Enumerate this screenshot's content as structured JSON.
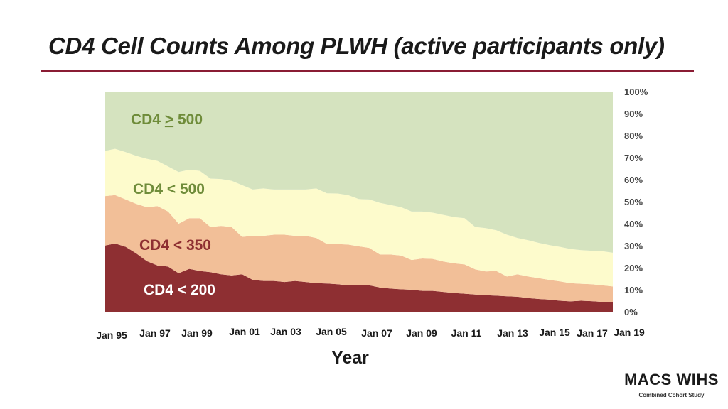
{
  "title": "CD4 Cell Counts Among PLWH (active participants only)",
  "logo": {
    "text": "MACS WIHS",
    "subtitle": "Combined Cohort Study"
  },
  "colors": {
    "band_lt200": "#8e2f32",
    "band_lt350": "#f2bf98",
    "band_lt500": "#fdfbcc",
    "band_ge500": "#d5e3bf",
    "label_dark_green": "#6f8c3a",
    "label_white": "#ffffff",
    "title_rule": "#8a1c34"
  },
  "chart_data": {
    "type": "area",
    "stacked": true,
    "xlabel": "Year",
    "ylabel": "",
    "ylim": [
      0,
      100
    ],
    "y_ticks": [
      "0%",
      "10%",
      "20%",
      "30%",
      "40%",
      "50%",
      "60%",
      "70%",
      "80%",
      "90%",
      "100%"
    ],
    "x_ticks": [
      "Jan 95",
      "Jan 97",
      "Jan 99",
      "Jan 01",
      "Jan 03",
      "Jan 05",
      "Jan 07",
      "Jan 09",
      "Jan 11",
      "Jan 13",
      "Jan 15",
      "Jan 17",
      "Jan 19"
    ],
    "x": [
      1995.0,
      1995.5,
      1996.0,
      1996.5,
      1997.0,
      1997.5,
      1998.0,
      1998.5,
      1999.0,
      1999.5,
      2000.0,
      2000.5,
      2001.0,
      2001.5,
      2002.0,
      2002.5,
      2003.0,
      2003.5,
      2004.0,
      2004.5,
      2005.0,
      2005.5,
      2006.0,
      2006.5,
      2007.0,
      2007.5,
      2008.0,
      2008.5,
      2009.0,
      2009.5,
      2010.0,
      2010.5,
      2011.0,
      2011.5,
      2012.0,
      2012.5,
      2013.0,
      2013.5,
      2014.0,
      2014.5,
      2015.0,
      2015.5,
      2016.0,
      2016.5,
      2017.0,
      2017.5,
      2018.0,
      2018.5,
      2019.0
    ],
    "series": [
      {
        "name": "CD4 < 200",
        "color": "#8e2f32",
        "values": [
          30.0,
          31.0,
          29.5,
          26.5,
          23.0,
          21.0,
          20.5,
          17.5,
          19.5,
          18.5,
          18.0,
          17.0,
          16.5,
          17.0,
          14.5,
          14.0,
          14.0,
          13.5,
          14.0,
          13.5,
          13.0,
          12.8,
          12.5,
          12.0,
          12.2,
          12.0,
          11.0,
          10.5,
          10.2,
          10.0,
          9.5,
          9.5,
          9.0,
          8.5,
          8.2,
          7.8,
          7.5,
          7.3,
          7.0,
          6.8,
          6.2,
          5.8,
          5.5,
          5.0,
          4.7,
          5.0,
          4.8,
          4.5,
          4.3
        ]
      },
      {
        "name": "CD4 < 350",
        "color": "#f2bf98",
        "values": [
          22.5,
          22.0,
          21.5,
          22.5,
          24.5,
          27.0,
          25.0,
          22.5,
          23.0,
          24.0,
          20.5,
          22.0,
          22.0,
          17.0,
          20.0,
          20.5,
          21.0,
          21.5,
          20.5,
          21.0,
          20.5,
          18.0,
          18.2,
          18.5,
          17.5,
          17.0,
          15.0,
          15.5,
          15.3,
          13.5,
          14.7,
          14.5,
          13.8,
          13.5,
          13.3,
          11.5,
          10.8,
          11.2,
          9.0,
          10.2,
          9.8,
          9.5,
          9.0,
          8.8,
          8.3,
          7.7,
          7.7,
          7.5,
          7.2
        ]
      },
      {
        "name": "CD4 < 500",
        "color": "#fdfbcc",
        "values": [
          20.5,
          21.0,
          21.5,
          21.8,
          22.0,
          20.5,
          20.5,
          23.5,
          22.0,
          21.5,
          22.0,
          21.3,
          21.0,
          23.5,
          21.0,
          21.5,
          20.5,
          20.5,
          21.0,
          21.0,
          22.5,
          23.0,
          23.0,
          22.5,
          21.5,
          22.0,
          23.5,
          22.5,
          22.0,
          22.0,
          21.3,
          21.0,
          21.2,
          21.0,
          21.0,
          19.2,
          19.7,
          18.5,
          19.0,
          16.5,
          16.5,
          16.0,
          15.8,
          15.7,
          15.5,
          15.3,
          15.2,
          15.5,
          15.3
        ]
      },
      {
        "name": "CD4 > 500",
        "color": "#d5e3bf",
        "values": [
          27.0,
          26.0,
          27.5,
          29.2,
          30.5,
          31.5,
          34.0,
          36.5,
          35.5,
          36.0,
          39.5,
          39.7,
          40.5,
          42.5,
          44.5,
          44.0,
          44.5,
          44.5,
          44.5,
          44.5,
          44.0,
          46.2,
          46.3,
          47.0,
          48.8,
          49.0,
          50.5,
          51.5,
          52.5,
          54.5,
          54.5,
          55.0,
          56.0,
          57.0,
          57.5,
          61.5,
          62.0,
          63.0,
          65.0,
          66.5,
          67.5,
          68.7,
          69.7,
          70.5,
          71.5,
          72.0,
          72.3,
          72.5,
          73.2
        ]
      }
    ],
    "band_labels": [
      "CD4 > 500",
      "CD4 < 500",
      "CD4 < 350",
      "CD4 < 200"
    ],
    "grid": false,
    "legend": "none"
  }
}
